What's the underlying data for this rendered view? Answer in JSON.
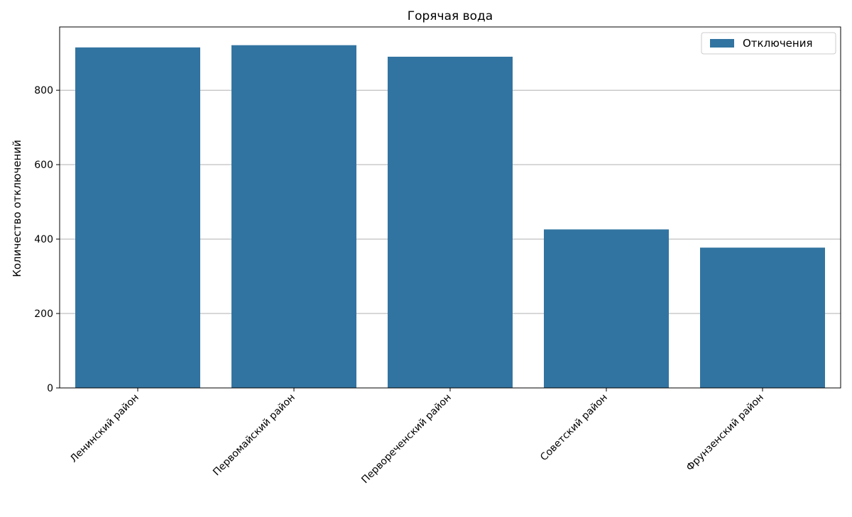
{
  "chart_data": {
    "type": "bar",
    "title": "Горячая вода",
    "xlabel": "",
    "ylabel": "Количество отключений",
    "categories": [
      "Ленинский район",
      "Первомайский район",
      "Первореченский район",
      "Советский район",
      "Фрунзенский район"
    ],
    "series": [
      {
        "name": "Отключения",
        "values": [
          915,
          921,
          890,
          426,
          377
        ],
        "color": "#3274a1"
      }
    ],
    "ylim": [
      0,
      970
    ],
    "yticks": [
      0,
      200,
      400,
      600,
      800
    ],
    "grid": "y",
    "legend_position": "top-right"
  }
}
